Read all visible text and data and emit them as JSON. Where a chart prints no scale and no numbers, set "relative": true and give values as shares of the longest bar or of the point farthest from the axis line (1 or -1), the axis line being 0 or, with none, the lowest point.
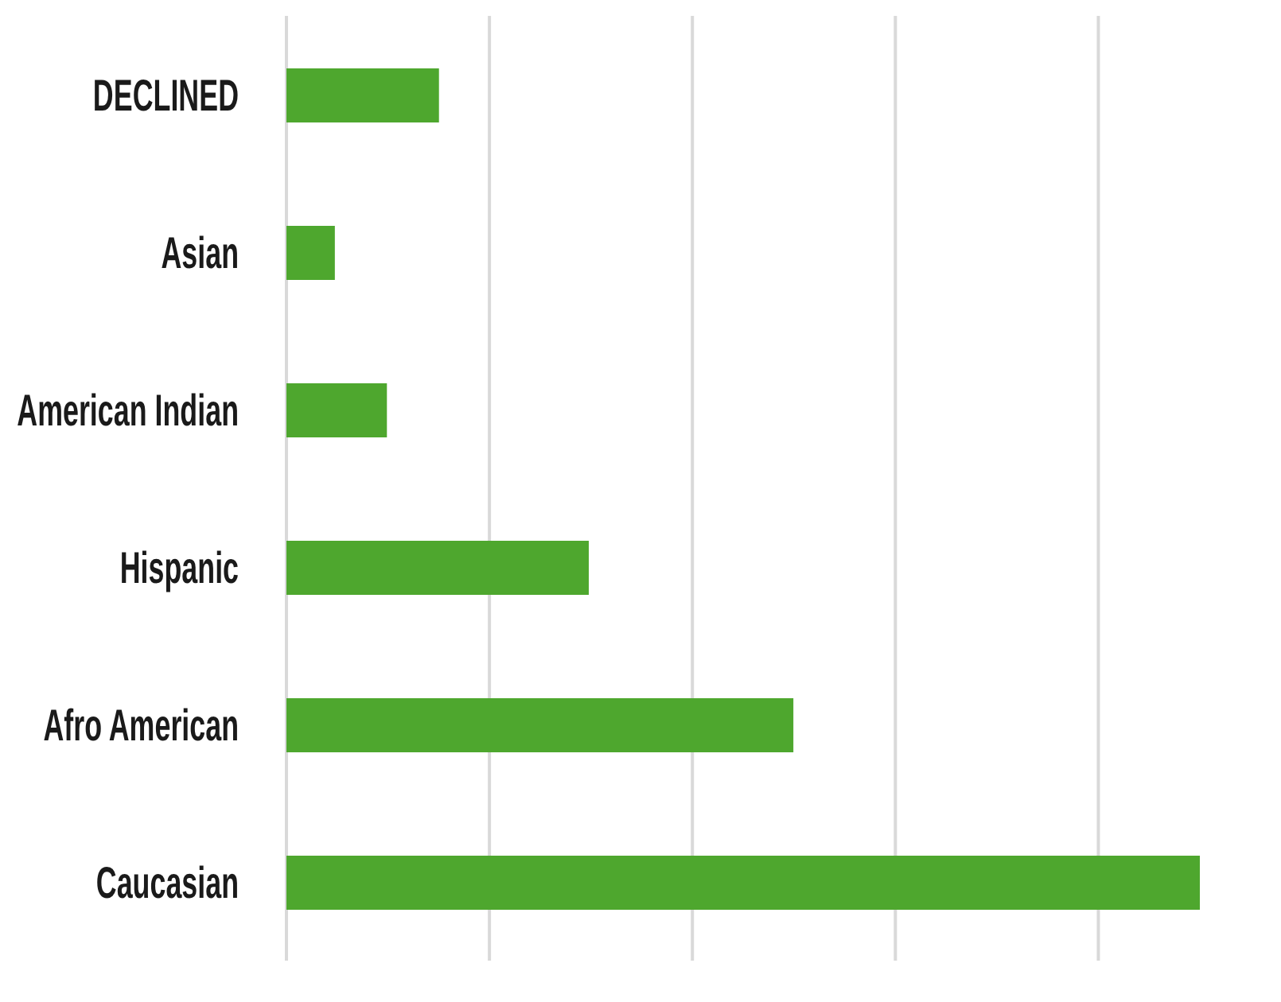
{
  "chart_data": {
    "type": "bar",
    "orientation": "horizontal",
    "relative": true,
    "categories": [
      "DECLINED",
      "Asian",
      "American Indian",
      "Hispanic",
      "Afro American",
      "Caucasian"
    ],
    "values": [
      0.167,
      0.053,
      0.11,
      0.331,
      0.555,
      1
    ],
    "color": "#4ea72e",
    "grid": "x"
  }
}
